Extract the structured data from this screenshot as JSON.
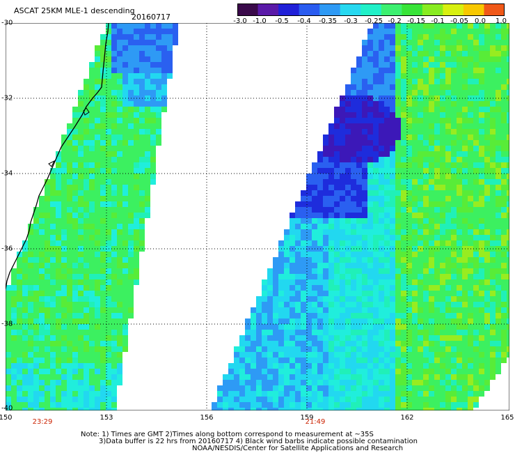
{
  "header": {
    "title": "ASCAT 25KM MLE-1 descending",
    "date": "20160717"
  },
  "colorbar": {
    "ticks": [
      "-3.0",
      "-1.0",
      "-0.5",
      "-0.4",
      "-0.35",
      "-0.3",
      "-0.25",
      "-0.2",
      "-0.15",
      "-0.1",
      "-0.05",
      "0.0",
      "1.0"
    ],
    "colors": [
      "#3a0a4a",
      "#5a1aa8",
      "#2020d8",
      "#2a5cf0",
      "#2e9af5",
      "#26d8f0",
      "#20f0c8",
      "#3cf070",
      "#38e438",
      "#88ec20",
      "#d8f010",
      "#f8c800",
      "#f05818"
    ]
  },
  "axes": {
    "lat_labels": [
      "-30",
      "-32",
      "-34",
      "-36",
      "-38",
      "-40"
    ],
    "lon_labels": [
      "150",
      "153",
      "156",
      "159",
      "162",
      "165"
    ]
  },
  "passes": {
    "left_time": "23:29",
    "right_time": "21:49"
  },
  "notes": {
    "line1": "Note: 1) Times are GMT 2)Times along bottom correspond to measurement at ~35S",
    "line2": "3)Data buffer is 22 hrs from 20160717 4) Black wind barbs indicate possible contamination",
    "line3": "NOAA/NESDIS/Center for Satellite Applications and Research"
  }
}
